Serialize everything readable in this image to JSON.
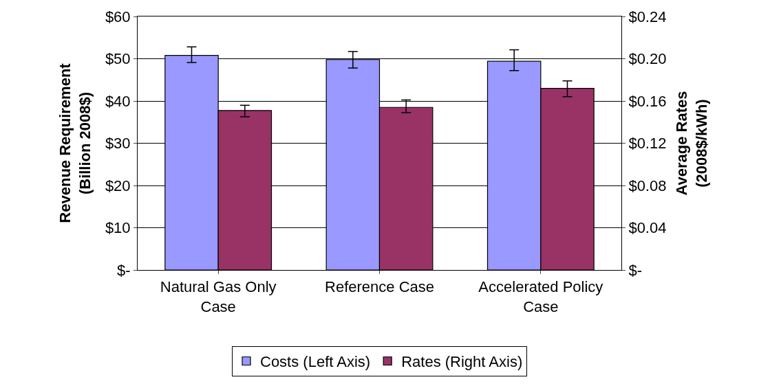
{
  "chart_data": {
    "type": "bar",
    "ylabel": "Revenue Requirement\n(Billion 2008$)",
    "y2label": "Average Rates\n(2008$/kWh)",
    "categories": [
      "Natural Gas Only\nCase",
      "Reference Case",
      "Accelerated Policy\nCase"
    ],
    "series": [
      {
        "name": "Costs (Left Axis)",
        "color": "#9999ff",
        "values": [
          50.8,
          49.8,
          49.4
        ],
        "errors": [
          [
            49.1,
            52.8
          ],
          [
            47.8,
            51.7
          ],
          [
            47.2,
            52.1
          ]
        ]
      },
      {
        "name": "Rates (Right Axis)",
        "color": "#993366",
        "axis": "y2",
        "values": [
          0.151,
          0.154,
          0.172
        ],
        "errors": [
          [
            0.145,
            0.156
          ],
          [
            0.149,
            0.161
          ],
          [
            0.164,
            0.179
          ]
        ]
      }
    ],
    "ylim": [
      0,
      60
    ],
    "yticks": [
      {
        "value": 0,
        "label": "$-"
      },
      {
        "value": 10,
        "label": "$10"
      },
      {
        "value": 20,
        "label": "$20"
      },
      {
        "value": 30,
        "label": "$30"
      },
      {
        "value": 40,
        "label": "$40"
      },
      {
        "value": 50,
        "label": "$50"
      },
      {
        "value": 60,
        "label": "$60"
      }
    ],
    "y2lim": [
      0,
      0.24
    ],
    "y2ticks": [
      {
        "value": 0,
        "label": "$-"
      },
      {
        "value": 0.04,
        "label": "$0.04"
      },
      {
        "value": 0.08,
        "label": "$0.08"
      },
      {
        "value": 0.12,
        "label": "$0.12"
      },
      {
        "value": 0.16,
        "label": "$0.16"
      },
      {
        "value": 0.2,
        "label": "$0.20"
      },
      {
        "value": 0.24,
        "label": "$0.24"
      }
    ],
    "grid": "y",
    "legend": "bottom"
  }
}
